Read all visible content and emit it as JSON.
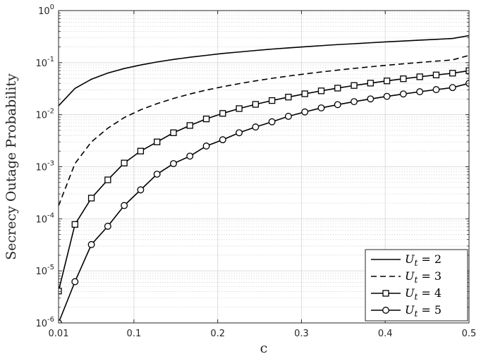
{
  "chart_data": {
    "type": "line",
    "title": "",
    "xlabel": "c",
    "ylabel": "Secrecy Outage Probability",
    "xlim": [
      0.01,
      0.5
    ],
    "ylim": [
      1e-06,
      1
    ],
    "yscale": "log",
    "grid": true,
    "legend_position": "bottom-right",
    "x_ticks": [
      0.01,
      0.1,
      0.2,
      0.3,
      0.4,
      0.5
    ],
    "x_tick_labels": [
      "0.01",
      "0.1",
      "0.2",
      "0.3",
      "0.4",
      "0.5"
    ],
    "y_ticks": [
      1e-06,
      1e-05,
      0.0001,
      0.001,
      0.01,
      0.1,
      1
    ],
    "y_tick_labels": [
      {
        "base": "10",
        "exp": "-6"
      },
      {
        "base": "10",
        "exp": "-5"
      },
      {
        "base": "10",
        "exp": "-4"
      },
      {
        "base": "10",
        "exp": "-3"
      },
      {
        "base": "10",
        "exp": "-2"
      },
      {
        "base": "10",
        "exp": "-1"
      },
      {
        "base": "10",
        "exp": "0"
      }
    ],
    "x": [
      0.01,
      0.0296,
      0.0492,
      0.0688,
      0.0884,
      0.108,
      0.1276,
      0.1472,
      0.1668,
      0.1864,
      0.206,
      0.2256,
      0.2452,
      0.2648,
      0.2844,
      0.304,
      0.3236,
      0.3432,
      0.3628,
      0.3824,
      0.402,
      0.4216,
      0.4412,
      0.4608,
      0.4804,
      0.5
    ],
    "series": [
      {
        "name": "U_t = 2",
        "legend_var": "U",
        "legend_sub": "t",
        "legend_value": "= 2",
        "line_style": "solid",
        "marker": "none",
        "color": "#000000",
        "values": [
          0.0148,
          0.032,
          0.048,
          0.063,
          0.077,
          0.09,
          0.103,
          0.115,
          0.127,
          0.138,
          0.15,
          0.16,
          0.171,
          0.182,
          0.192,
          0.202,
          0.212,
          0.222,
          0.231,
          0.241,
          0.251,
          0.26,
          0.27,
          0.28,
          0.291,
          0.33
        ]
      },
      {
        "name": "U_t = 3",
        "legend_var": "U",
        "legend_sub": "t",
        "legend_value": "= 3",
        "line_style": "dashed",
        "marker": "none",
        "color": "#000000",
        "values": [
          0.000178,
          0.00115,
          0.003,
          0.0055,
          0.0088,
          0.0124,
          0.0163,
          0.0205,
          0.025,
          0.0297,
          0.0345,
          0.0395,
          0.0446,
          0.0499,
          0.0552,
          0.0607,
          0.0662,
          0.0718,
          0.0775,
          0.0833,
          0.0891,
          0.0949,
          0.1009,
          0.1068,
          0.1128,
          0.138
        ]
      },
      {
        "name": "U_t = 4",
        "legend_var": "U",
        "legend_sub": "t",
        "legend_value": "= 4",
        "line_style": "solid",
        "marker": "square",
        "color": "#000000",
        "values": [
          4.1e-06,
          7.8e-05,
          0.00025,
          0.00056,
          0.00118,
          0.002,
          0.003,
          0.0045,
          0.0062,
          0.0083,
          0.0106,
          0.0131,
          0.0158,
          0.0187,
          0.0218,
          0.0252,
          0.0287,
          0.0324,
          0.0364,
          0.0404,
          0.0446,
          0.049,
          0.0535,
          0.058,
          0.0627,
          0.07
        ]
      },
      {
        "name": "U_t = 5",
        "legend_var": "U",
        "legend_sub": "t",
        "legend_value": "= 5",
        "line_style": "solid",
        "marker": "circle",
        "color": "#000000",
        "values": [
          1e-06,
          6.2e-06,
          3.2e-05,
          7.2e-05,
          0.00018,
          0.00036,
          0.00072,
          0.00115,
          0.0016,
          0.0025,
          0.0033,
          0.0045,
          0.0058,
          0.0073,
          0.0093,
          0.0113,
          0.0135,
          0.0156,
          0.0178,
          0.0201,
          0.0225,
          0.025,
          0.0276,
          0.0303,
          0.0332,
          0.04
        ]
      }
    ]
  }
}
